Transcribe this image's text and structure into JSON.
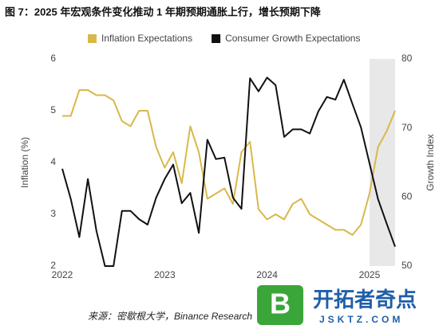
{
  "chart_data": {
    "type": "line",
    "title": "图 7：2025 年宏观条件变化推动 1 年期预期通胀上行，增长预期下降",
    "categories": [
      "2022",
      null,
      null,
      null,
      null,
      null,
      null,
      null,
      null,
      null,
      null,
      null,
      "2023",
      null,
      null,
      null,
      null,
      null,
      null,
      null,
      null,
      null,
      null,
      null,
      "2024",
      null,
      null,
      null,
      null,
      null,
      null,
      null,
      null,
      null,
      null,
      null,
      "2025",
      null,
      null,
      null
    ],
    "series": [
      {
        "name": "Inflation Expectations",
        "color": "#d9b84a",
        "values": [
          4.9,
          4.9,
          5.4,
          5.4,
          5.3,
          5.3,
          5.2,
          4.8,
          4.7,
          5.0,
          5.0,
          4.3,
          3.9,
          4.2,
          3.6,
          4.7,
          4.2,
          3.3,
          3.4,
          3.5,
          3.2,
          4.2,
          4.4,
          3.1,
          2.9,
          3.0,
          2.9,
          3.2,
          3.3,
          3.0,
          2.9,
          2.8,
          2.7,
          2.7,
          2.6,
          2.8,
          3.4,
          4.3,
          4.6,
          5.0
        ]
      },
      {
        "name": "Consumer Growth Expectations",
        "color": "#111111",
        "axis": "y2",
        "values": [
          64.1,
          59.7,
          54.2,
          62.6,
          55.1,
          50.0,
          50.0,
          58.0,
          58.0,
          56.8,
          56.0,
          59.9,
          62.6,
          64.7,
          59.1,
          60.6,
          54.8,
          68.3,
          65.5,
          65.7,
          59.9,
          58.3,
          77.2,
          75.3,
          77.3,
          76.2,
          68.7,
          69.8,
          69.8,
          69.2,
          72.4,
          74.5,
          74.1,
          77.0,
          73.5,
          70.1,
          64.9,
          59.7,
          56.2,
          52.8
        ]
      }
    ],
    "ylabel": "Inflation (%)",
    "y2label": "Growth Index",
    "ylim": [
      2,
      6
    ],
    "yticks": [
      2,
      3,
      4,
      5,
      6
    ],
    "y2lim": [
      50,
      80
    ],
    "y2ticks": [
      50,
      60,
      70,
      80
    ],
    "legend": "top",
    "grid": false,
    "source": "来源：密歇根大学，Binance Research"
  },
  "watermark": {
    "icon": "B",
    "title": "开拓者奇点",
    "url": "JSKTZ.COM"
  }
}
